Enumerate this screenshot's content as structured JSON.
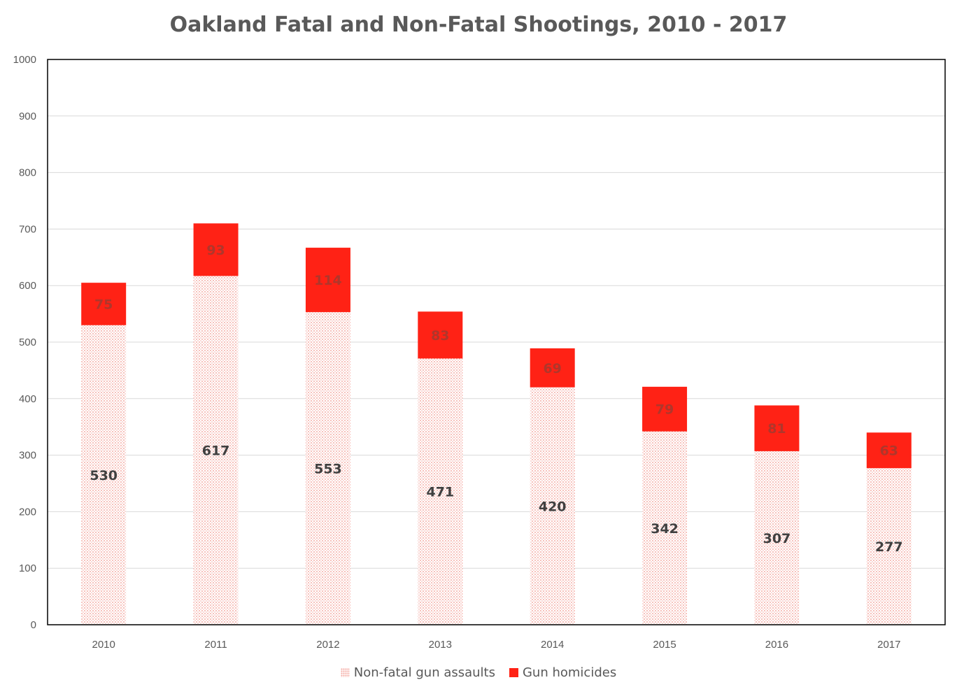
{
  "chart_data": {
    "type": "bar",
    "stacked": true,
    "title": "Oakland Fatal and Non-Fatal Shootings, 2010 - 2017",
    "xlabel": "",
    "ylabel": "",
    "categories": [
      "2010",
      "2011",
      "2012",
      "2013",
      "2014",
      "2015",
      "2016",
      "2017"
    ],
    "series": [
      {
        "name": "Non-fatal gun assaults",
        "values": [
          530,
          617,
          553,
          471,
          420,
          342,
          307,
          277
        ],
        "color": "#f4a9a2",
        "pattern": "dotted"
      },
      {
        "name": "Gun homicides",
        "values": [
          75,
          93,
          114,
          83,
          69,
          79,
          81,
          63
        ],
        "color": "#ff2215"
      }
    ],
    "ylim": [
      0,
      1000
    ],
    "yticks": [
      "0",
      "100",
      "200",
      "300",
      "400",
      "500",
      "600",
      "700",
      "800",
      "900",
      "1000"
    ],
    "grid": true,
    "legend_position": "bottom"
  }
}
